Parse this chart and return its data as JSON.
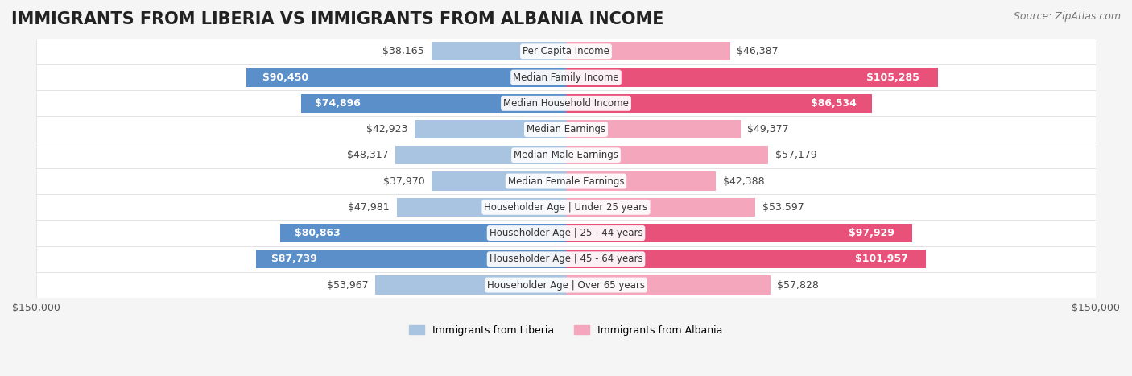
{
  "title": "IMMIGRANTS FROM LIBERIA VS IMMIGRANTS FROM ALBANIA INCOME",
  "source": "Source: ZipAtlas.com",
  "categories": [
    "Per Capita Income",
    "Median Family Income",
    "Median Household Income",
    "Median Earnings",
    "Median Male Earnings",
    "Median Female Earnings",
    "Householder Age | Under 25 years",
    "Householder Age | 25 - 44 years",
    "Householder Age | 45 - 64 years",
    "Householder Age | Over 65 years"
  ],
  "liberia_values": [
    38165,
    90450,
    74896,
    42923,
    48317,
    37970,
    47981,
    80863,
    87739,
    53967
  ],
  "albania_values": [
    46387,
    105285,
    86534,
    49377,
    57179,
    42388,
    53597,
    97929,
    101957,
    57828
  ],
  "liberia_labels": [
    "$38,165",
    "$90,450",
    "$74,896",
    "$42,923",
    "$48,317",
    "$37,970",
    "$47,981",
    "$80,863",
    "$87,739",
    "$53,967"
  ],
  "albania_labels": [
    "$46,387",
    "$105,285",
    "$86,534",
    "$49,377",
    "$57,179",
    "$42,388",
    "$53,597",
    "$97,929",
    "$101,957",
    "$57,828"
  ],
  "liberia_color_light": "#a8c4e0",
  "liberia_color_dark": "#5b8fc9",
  "albania_color_light": "#f4a7bc",
  "albania_color_dark": "#e8527a",
  "max_value": 150000,
  "legend_liberia": "Immigrants from Liberia",
  "legend_albania": "Immigrants from Albania",
  "background_color": "#f5f5f5",
  "row_bg_color": "#ffffff",
  "label_bg_color": "#ffffff",
  "title_fontsize": 15,
  "source_fontsize": 9,
  "bar_label_fontsize": 9,
  "category_fontsize": 8.5,
  "legend_fontsize": 9,
  "axis_label_fontsize": 9,
  "high_threshold": 70000
}
